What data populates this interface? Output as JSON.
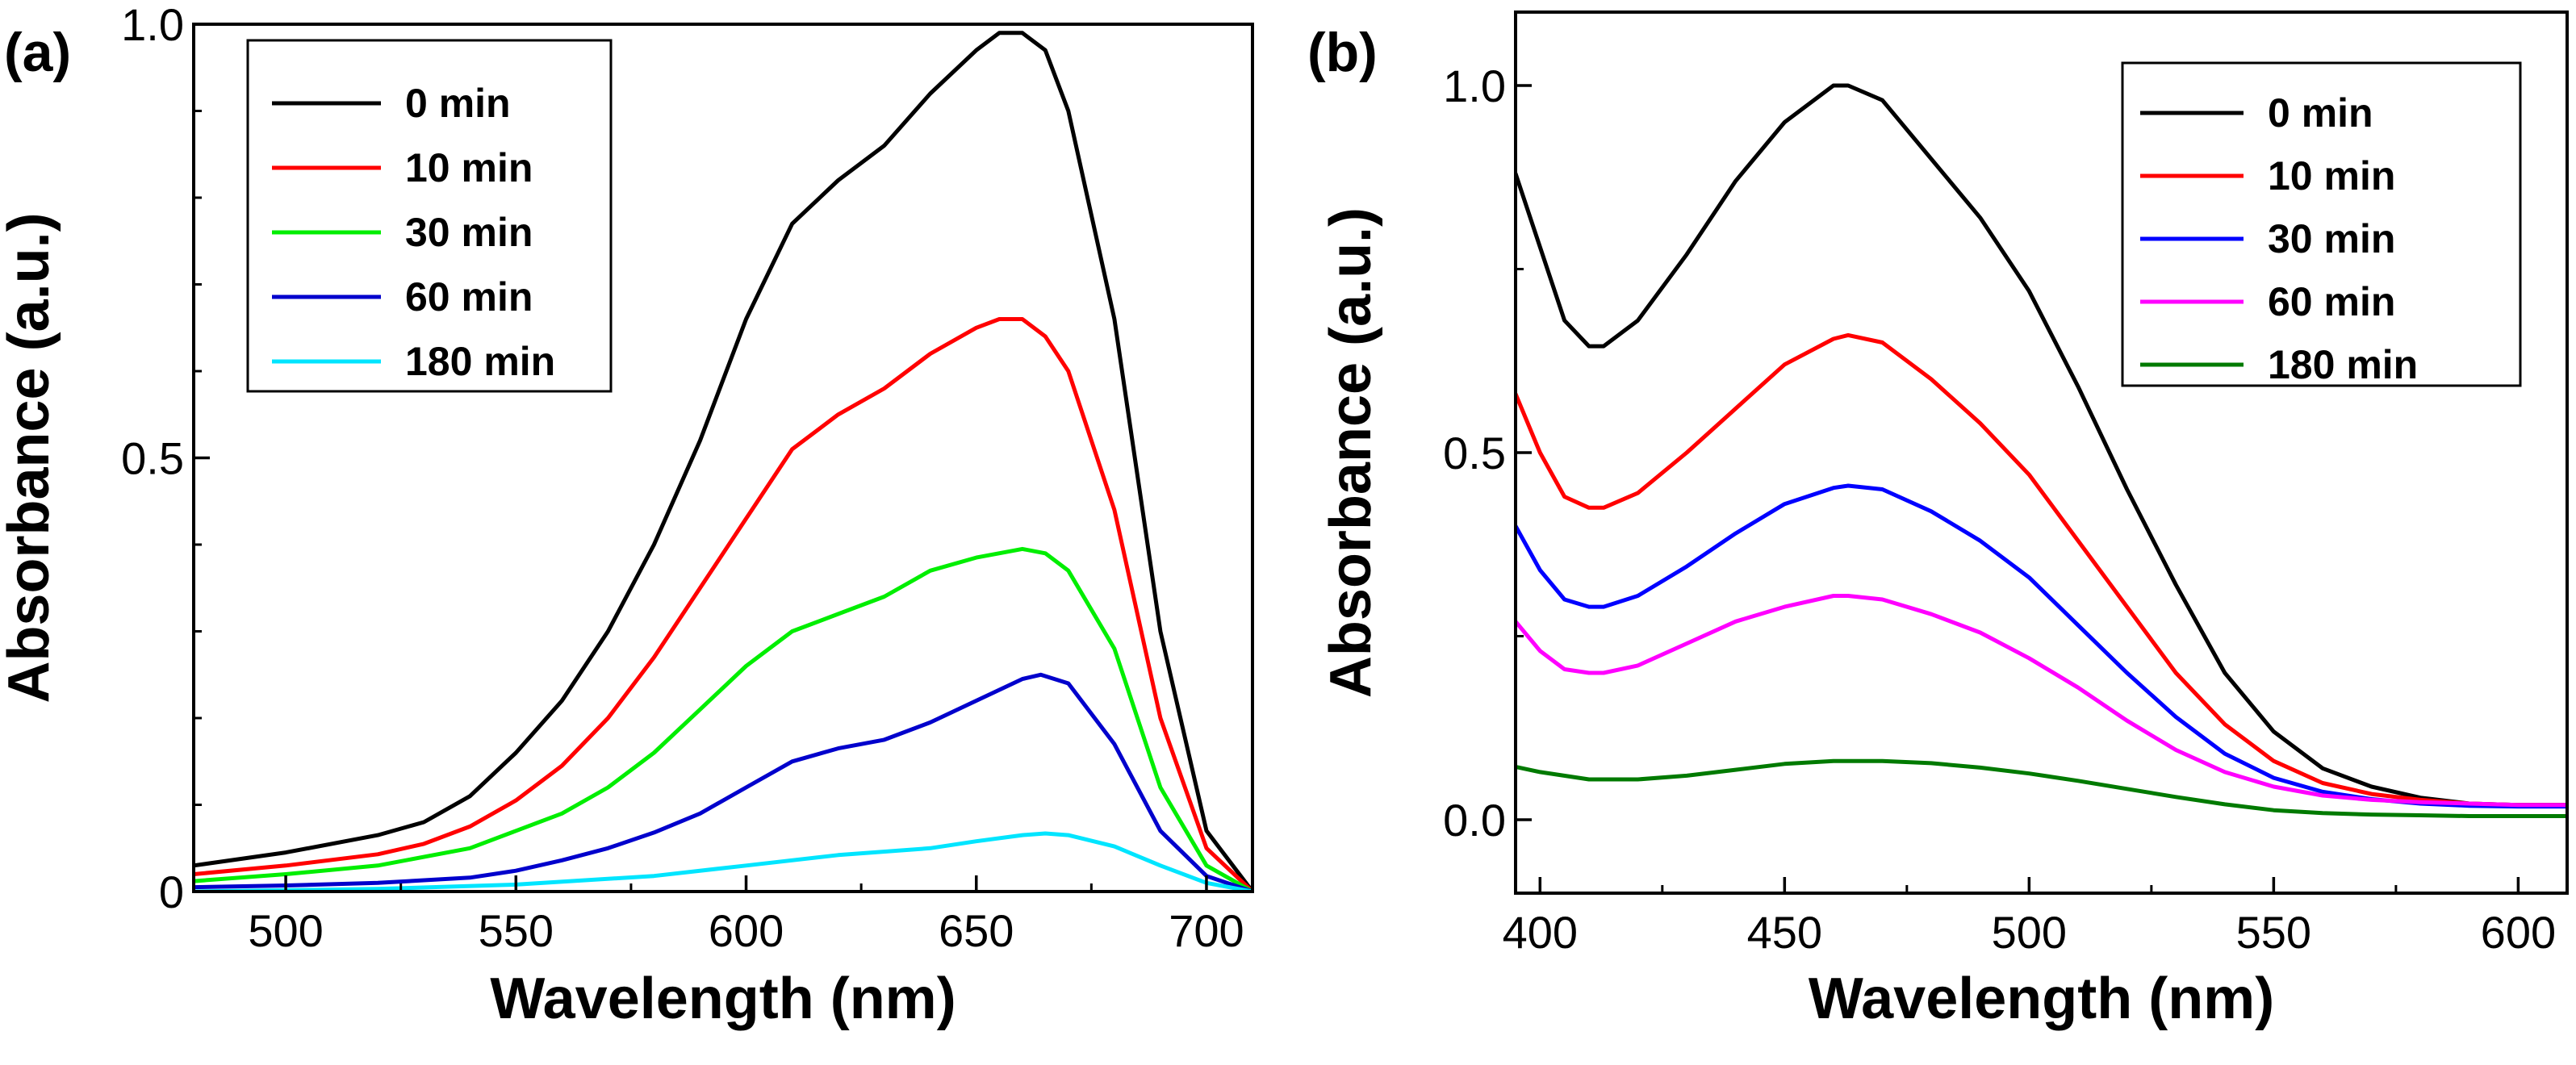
{
  "chart_data": [
    {
      "type": "line",
      "panel_label": "(a)",
      "xlabel": "Wavelength (nm)",
      "ylabel": "Absorbance (a.u.)",
      "xlim": [
        480,
        710
      ],
      "ylim": [
        0,
        1.0
      ],
      "xticks": [
        500,
        550,
        600,
        650,
        700
      ],
      "yticks": [
        0,
        0.5,
        1.0
      ],
      "xtick_labels": [
        "500",
        "550",
        "600",
        "650",
        "700"
      ],
      "ytick_labels": [
        "0",
        "0.5",
        "1.0"
      ],
      "legend_position": "top-left",
      "series": [
        {
          "name": "0 min",
          "color": "#000000",
          "x": [
            480,
            500,
            520,
            530,
            540,
            550,
            560,
            570,
            580,
            590,
            600,
            610,
            620,
            630,
            640,
            650,
            655,
            660,
            665,
            670,
            680,
            690,
            700,
            710
          ],
          "y": [
            0.03,
            0.045,
            0.065,
            0.08,
            0.11,
            0.16,
            0.22,
            0.3,
            0.4,
            0.52,
            0.66,
            0.77,
            0.82,
            0.86,
            0.92,
            0.97,
            0.99,
            0.99,
            0.97,
            0.9,
            0.66,
            0.3,
            0.07,
            0.0
          ]
        },
        {
          "name": "10 min",
          "color": "#ff0000",
          "x": [
            480,
            500,
            520,
            530,
            540,
            550,
            560,
            570,
            580,
            590,
            600,
            610,
            620,
            630,
            640,
            650,
            655,
            660,
            665,
            670,
            680,
            690,
            700,
            710
          ],
          "y": [
            0.02,
            0.03,
            0.043,
            0.055,
            0.075,
            0.105,
            0.145,
            0.2,
            0.27,
            0.35,
            0.43,
            0.51,
            0.55,
            0.58,
            0.62,
            0.65,
            0.66,
            0.66,
            0.64,
            0.6,
            0.44,
            0.2,
            0.05,
            0.0
          ]
        },
        {
          "name": "30 min",
          "color": "#00ee00",
          "x": [
            480,
            500,
            520,
            540,
            550,
            560,
            570,
            580,
            590,
            600,
            610,
            620,
            630,
            640,
            650,
            660,
            665,
            670,
            680,
            690,
            700,
            710
          ],
          "y": [
            0.012,
            0.02,
            0.03,
            0.05,
            0.07,
            0.09,
            0.12,
            0.16,
            0.21,
            0.26,
            0.3,
            0.32,
            0.34,
            0.37,
            0.385,
            0.395,
            0.39,
            0.37,
            0.28,
            0.12,
            0.03,
            0.0
          ]
        },
        {
          "name": "60 min",
          "color": "#0000cc",
          "x": [
            480,
            500,
            520,
            540,
            550,
            560,
            570,
            580,
            590,
            600,
            610,
            620,
            630,
            640,
            650,
            660,
            664,
            670,
            680,
            690,
            700,
            710
          ],
          "y": [
            0.005,
            0.007,
            0.01,
            0.016,
            0.024,
            0.036,
            0.05,
            0.068,
            0.09,
            0.12,
            0.15,
            0.165,
            0.175,
            0.195,
            0.22,
            0.245,
            0.25,
            0.24,
            0.17,
            0.07,
            0.018,
            0.0
          ]
        },
        {
          "name": "180 min",
          "color": "#00e5ff",
          "x": [
            480,
            520,
            550,
            580,
            600,
            620,
            640,
            650,
            660,
            665,
            670,
            680,
            690,
            700,
            710
          ],
          "y": [
            0.0,
            0.003,
            0.008,
            0.018,
            0.03,
            0.042,
            0.05,
            0.058,
            0.065,
            0.067,
            0.065,
            0.052,
            0.03,
            0.01,
            0.0
          ]
        }
      ]
    },
    {
      "type": "line",
      "panel_label": "(b)",
      "xlabel": "Wavelength (nm)",
      "ylabel": "Absorbance (a.u.)",
      "xlim": [
        395,
        610
      ],
      "ylim": [
        -0.1,
        1.1
      ],
      "xticks": [
        400,
        450,
        500,
        550,
        600
      ],
      "yticks": [
        0.0,
        0.5,
        1.0
      ],
      "xtick_labels": [
        "400",
        "450",
        "500",
        "550",
        "600"
      ],
      "ytick_labels": [
        "0.0",
        "0.5",
        "1.0"
      ],
      "legend_position": "top-right",
      "series": [
        {
          "name": "0 min",
          "color": "#000000",
          "x": [
            395,
            400,
            405,
            410,
            413,
            420,
            430,
            440,
            450,
            460,
            463,
            470,
            480,
            490,
            500,
            510,
            520,
            530,
            540,
            550,
            560,
            570,
            580,
            590,
            600,
            610
          ],
          "y": [
            0.88,
            0.78,
            0.68,
            0.645,
            0.645,
            0.68,
            0.77,
            0.87,
            0.95,
            1.0,
            1.0,
            0.98,
            0.9,
            0.82,
            0.72,
            0.59,
            0.45,
            0.32,
            0.2,
            0.12,
            0.07,
            0.045,
            0.03,
            0.022,
            0.02,
            0.02
          ]
        },
        {
          "name": "10 min",
          "color": "#ff0000",
          "x": [
            395,
            400,
            405,
            410,
            413,
            420,
            430,
            440,
            450,
            460,
            463,
            470,
            480,
            490,
            500,
            510,
            520,
            530,
            540,
            550,
            560,
            570,
            580,
            590,
            600,
            610
          ],
          "y": [
            0.58,
            0.5,
            0.44,
            0.425,
            0.425,
            0.445,
            0.5,
            0.56,
            0.62,
            0.655,
            0.66,
            0.65,
            0.6,
            0.54,
            0.47,
            0.38,
            0.29,
            0.2,
            0.13,
            0.08,
            0.05,
            0.035,
            0.027,
            0.022,
            0.02,
            0.02
          ]
        },
        {
          "name": "30 min",
          "color": "#0000ff",
          "x": [
            395,
            400,
            405,
            410,
            413,
            420,
            430,
            440,
            450,
            460,
            463,
            470,
            480,
            490,
            500,
            510,
            520,
            530,
            540,
            550,
            560,
            570,
            580,
            590,
            600,
            610
          ],
          "y": [
            0.4,
            0.34,
            0.3,
            0.29,
            0.29,
            0.305,
            0.345,
            0.39,
            0.43,
            0.452,
            0.455,
            0.45,
            0.42,
            0.38,
            0.33,
            0.265,
            0.2,
            0.14,
            0.09,
            0.057,
            0.038,
            0.028,
            0.022,
            0.019,
            0.018,
            0.018
          ]
        },
        {
          "name": "60 min",
          "color": "#ff00ff",
          "x": [
            395,
            400,
            405,
            410,
            413,
            420,
            430,
            440,
            450,
            460,
            463,
            470,
            480,
            490,
            500,
            510,
            520,
            530,
            540,
            550,
            560,
            570,
            580,
            590,
            600,
            610
          ],
          "y": [
            0.27,
            0.23,
            0.205,
            0.2,
            0.2,
            0.21,
            0.24,
            0.27,
            0.29,
            0.305,
            0.305,
            0.3,
            0.28,
            0.255,
            0.22,
            0.18,
            0.135,
            0.095,
            0.065,
            0.045,
            0.033,
            0.027,
            0.024,
            0.022,
            0.02,
            0.02
          ]
        },
        {
          "name": "180 min",
          "color": "#007a00",
          "x": [
            395,
            400,
            410,
            420,
            430,
            440,
            450,
            460,
            465,
            470,
            480,
            490,
            500,
            510,
            520,
            530,
            540,
            550,
            560,
            570,
            580,
            590,
            600,
            610
          ],
          "y": [
            0.072,
            0.065,
            0.055,
            0.055,
            0.06,
            0.068,
            0.076,
            0.08,
            0.08,
            0.08,
            0.077,
            0.071,
            0.063,
            0.053,
            0.042,
            0.031,
            0.021,
            0.013,
            0.009,
            0.007,
            0.006,
            0.005,
            0.005,
            0.005
          ]
        }
      ]
    }
  ]
}
